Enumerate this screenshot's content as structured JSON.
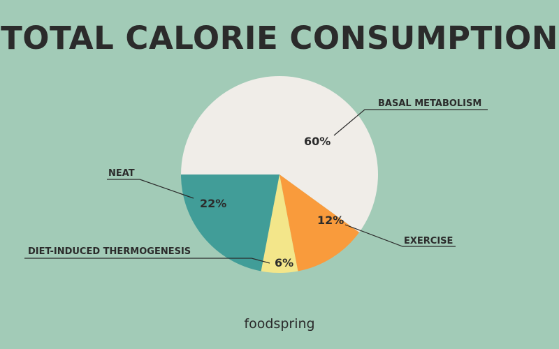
{
  "chart_data": {
    "type": "pie",
    "title": "TOTAL CALORIE CONSUMPTION",
    "start": "9 o'clock, clockwise",
    "slices": [
      {
        "label": "BASAL METABOLISM",
        "value": 60,
        "value_label": "60%",
        "color": "#f0ede8"
      },
      {
        "label": "EXERCISE",
        "value": 12,
        "value_label": "12%",
        "color": "#f99b3c"
      },
      {
        "label": "DIET-INDUCED THERMOGENESIS",
        "value": 6,
        "value_label": "6%",
        "color": "#f3e68a"
      },
      {
        "label": "NEAT",
        "value": 22,
        "value_label": "22%",
        "color": "#419d98"
      }
    ]
  },
  "brand": "foodspring"
}
